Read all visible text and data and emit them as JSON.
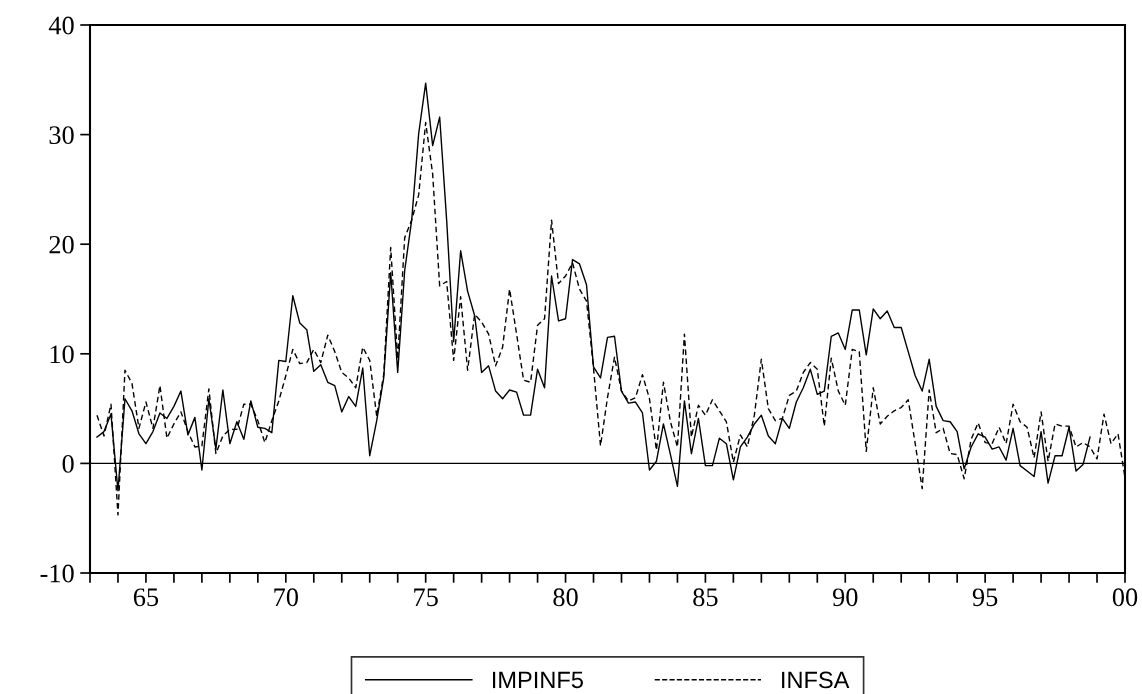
{
  "chart_data": {
    "type": "line",
    "x": [
      1963.25,
      1963.5,
      1963.75,
      1964,
      1964.25,
      1964.5,
      1964.75,
      1965,
      1965.25,
      1965.5,
      1965.75,
      1966,
      1966.25,
      1966.5,
      1966.75,
      1967,
      1967.25,
      1967.5,
      1967.75,
      1968,
      1968.25,
      1968.5,
      1968.75,
      1969,
      1969.25,
      1969.5,
      1969.75,
      1970,
      1970.25,
      1970.5,
      1970.75,
      1971,
      1971.25,
      1971.5,
      1971.75,
      1972,
      1972.25,
      1972.5,
      1972.75,
      1973,
      1973.25,
      1973.5,
      1973.75,
      1974,
      1974.25,
      1974.5,
      1974.75,
      1975,
      1975.25,
      1975.5,
      1975.75,
      1976,
      1976.25,
      1976.5,
      1976.75,
      1977,
      1977.25,
      1977.5,
      1977.75,
      1978,
      1978.25,
      1978.5,
      1978.75,
      1979,
      1979.25,
      1979.5,
      1979.75,
      1980,
      1980.25,
      1980.5,
      1980.75,
      1981,
      1981.25,
      1981.5,
      1981.75,
      1982,
      1982.25,
      1982.5,
      1982.75,
      1983,
      1983.25,
      1983.5,
      1983.75,
      1984,
      1984.25,
      1984.5,
      1984.75,
      1985,
      1985.25,
      1985.5,
      1985.75,
      1986,
      1986.25,
      1986.5,
      1986.75,
      1987,
      1987.25,
      1987.5,
      1987.75,
      1988,
      1988.25,
      1988.5,
      1988.75,
      1989,
      1989.25,
      1989.5,
      1989.75,
      1990,
      1990.25,
      1990.5,
      1990.75,
      1991,
      1991.25,
      1991.5,
      1991.75,
      1992,
      1992.25,
      1992.5,
      1992.75,
      1993,
      1993.25,
      1993.5,
      1993.75,
      1994,
      1994.25,
      1994.5,
      1994.75,
      1995,
      1995.25,
      1995.5,
      1995.75,
      1996,
      1996.25,
      1996.5,
      1996.75,
      1997,
      1997.25,
      1997.5,
      1997.75,
      1998,
      1998.25,
      1998.5,
      1998.75,
      1999,
      1999.25,
      1999.5,
      1999.75,
      2000
    ],
    "series": [
      {
        "name": "IMPINF5",
        "color": "#000000",
        "line_style": "solid",
        "values": [
          2.4,
          2.9,
          4.5,
          -2.5,
          5.9,
          4.8,
          2.7,
          1.8,
          2.9,
          4.6,
          4.1,
          5.2,
          6.6,
          2.6,
          4.2,
          -0.6,
          5.9,
          1.3,
          6.7,
          1.8,
          3.8,
          2.2,
          5.7,
          3.3,
          3.2,
          2.8,
          9.4,
          9.3,
          15.3,
          12.8,
          12.2,
          8.4,
          9.0,
          7.4,
          7.1,
          4.7,
          6.1,
          5.2,
          8.7,
          0.7,
          3.9,
          7.8,
          17.4,
          8.3,
          17.6,
          22.2,
          30.1,
          34.7,
          29.0,
          31.6,
          22.2,
          11.1,
          19.4,
          15.7,
          13.5,
          8.3,
          8.9,
          6.6,
          5.9,
          6.7,
          6.5,
          4.4,
          4.4,
          8.6,
          6.9,
          17.1,
          13.0,
          13.2,
          18.6,
          18.2,
          16.3,
          8.8,
          7.8,
          11.5,
          11.6,
          6.6,
          5.5,
          5.6,
          4.6,
          -0.6,
          0.2,
          3.6,
          0.8,
          -2.1,
          5.7,
          0.9,
          4.1,
          -0.2,
          -0.2,
          2.3,
          1.8,
          -1.5,
          1.5,
          2.4,
          3.6,
          4.4,
          2.5,
          1.8,
          4.1,
          3.2,
          5.6,
          6.9,
          8.6,
          6.3,
          6.6,
          11.6,
          11.9,
          10.4,
          14.0,
          14.0,
          9.9,
          14.1,
          13.2,
          13.9,
          12.4,
          12.4,
          10.2,
          8.0,
          6.6,
          9.5,
          5.2,
          3.9,
          3.8,
          2.9,
          -0.5,
          1.5,
          2.7,
          2.4,
          1.3,
          1.5,
          0.3,
          3.2,
          -0.2,
          -0.7,
          -1.2,
          2.9,
          -1.8,
          0.7,
          0.7,
          3.3,
          -0.7,
          -0.1,
          2.4,
          null,
          null,
          null,
          null,
          null
        ]
      },
      {
        "name": "INFSA",
        "color": "#000000",
        "line_style": "dashed",
        "values": [
          4.4,
          2.5,
          5.4,
          -4.7,
          8.5,
          7.3,
          3.2,
          5.6,
          3.2,
          7.1,
          2.3,
          3.6,
          4.7,
          2.9,
          1.5,
          1.6,
          6.8,
          0.9,
          2.5,
          3.1,
          3.1,
          5.4,
          5.4,
          3.9,
          1.9,
          3.9,
          5.7,
          8.0,
          10.4,
          9.1,
          9.2,
          10.4,
          9.2,
          11.7,
          10.2,
          8.3,
          7.8,
          6.9,
          10.6,
          9.4,
          4.3,
          8.1,
          19.7,
          9.5,
          20.6,
          22.2,
          24.5,
          31.1,
          26.4,
          16.2,
          16.6,
          9.4,
          15.2,
          8.5,
          13.6,
          12.9,
          11.8,
          8.9,
          10.6,
          15.9,
          11.8,
          7.6,
          7.4,
          12.6,
          13.2,
          22.2,
          16.4,
          17.1,
          18.3,
          15.9,
          14.8,
          8.7,
          1.6,
          6.0,
          9.7,
          6.6,
          5.7,
          6.0,
          8.1,
          5.9,
          1.2,
          7.4,
          3.8,
          1.5,
          11.8,
          2.4,
          5.3,
          4.4,
          5.8,
          4.8,
          3.8,
          0.1,
          2.6,
          1.5,
          4.4,
          9.5,
          5.0,
          3.9,
          4.1,
          6.2,
          6.6,
          8.3,
          9.2,
          8.6,
          3.4,
          9.6,
          6.6,
          5.3,
          10.4,
          10.2,
          1.1,
          6.9,
          3.6,
          4.3,
          4.8,
          5.1,
          5.8,
          1.8,
          -2.3,
          6.7,
          2.8,
          3.2,
          0.9,
          0.8,
          -1.4,
          2.2,
          3.7,
          1.9,
          1.8,
          3.3,
          1.8,
          5.4,
          3.8,
          3.3,
          0.5,
          4.7,
          0.2,
          3.6,
          3.4,
          3.4,
          1.5,
          1.9,
          1.5,
          0.4,
          4.5,
          1.8,
          2.7,
          -1.3
        ]
      }
    ],
    "xlim": [
      1963,
      2000
    ],
    "xticks": [
      {
        "value": 1963,
        "label": null
      },
      {
        "value": 1964,
        "label": null
      },
      {
        "value": 1965,
        "label": "65"
      },
      {
        "value": 1966,
        "label": null
      },
      {
        "value": 1967,
        "label": null
      },
      {
        "value": 1968,
        "label": null
      },
      {
        "value": 1969,
        "label": null
      },
      {
        "value": 1970,
        "label": "70"
      },
      {
        "value": 1971,
        "label": null
      },
      {
        "value": 1972,
        "label": null
      },
      {
        "value": 1973,
        "label": null
      },
      {
        "value": 1974,
        "label": null
      },
      {
        "value": 1975,
        "label": "75"
      },
      {
        "value": 1976,
        "label": null
      },
      {
        "value": 1977,
        "label": null
      },
      {
        "value": 1978,
        "label": null
      },
      {
        "value": 1979,
        "label": null
      },
      {
        "value": 1980,
        "label": "80"
      },
      {
        "value": 1981,
        "label": null
      },
      {
        "value": 1982,
        "label": null
      },
      {
        "value": 1983,
        "label": null
      },
      {
        "value": 1984,
        "label": null
      },
      {
        "value": 1985,
        "label": "85"
      },
      {
        "value": 1986,
        "label": null
      },
      {
        "value": 1987,
        "label": null
      },
      {
        "value": 1988,
        "label": null
      },
      {
        "value": 1989,
        "label": null
      },
      {
        "value": 1990,
        "label": "90"
      },
      {
        "value": 1991,
        "label": null
      },
      {
        "value": 1992,
        "label": null
      },
      {
        "value": 1993,
        "label": null
      },
      {
        "value": 1994,
        "label": null
      },
      {
        "value": 1995,
        "label": "95"
      },
      {
        "value": 1996,
        "label": null
      },
      {
        "value": 1997,
        "label": null
      },
      {
        "value": 1998,
        "label": null
      },
      {
        "value": 1999,
        "label": null
      },
      {
        "value": 2000,
        "label": "00"
      }
    ],
    "ylim": [
      -10,
      40
    ],
    "yticks": [
      -10,
      0,
      10,
      20,
      30,
      40
    ],
    "ref_lines": [
      {
        "axis": "y",
        "value": 0,
        "color": "#000000",
        "line_style": "solid"
      }
    ],
    "grid": false,
    "legend": "bottom"
  }
}
